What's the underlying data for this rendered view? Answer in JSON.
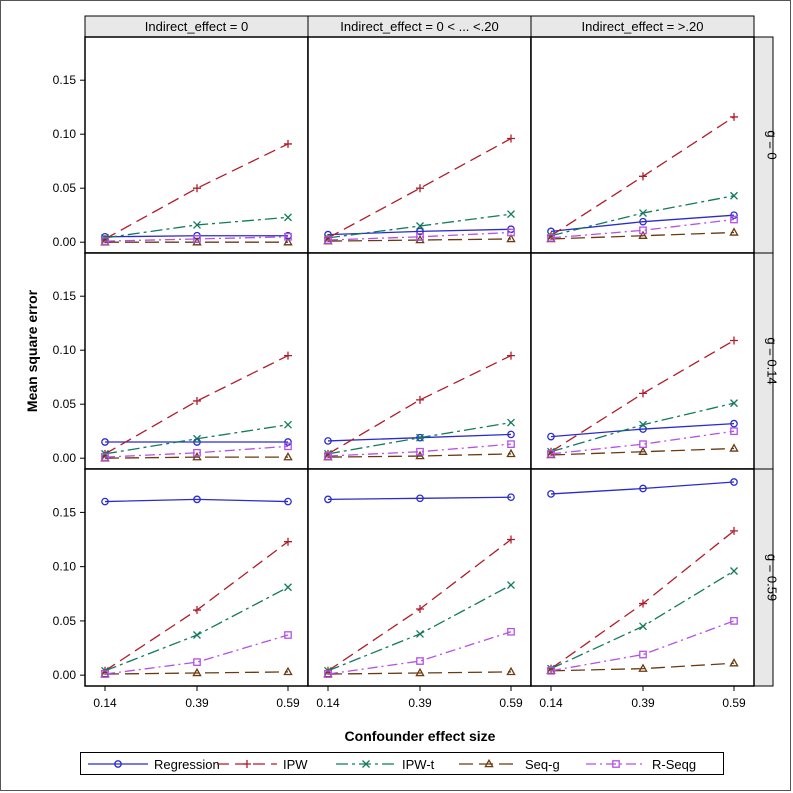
{
  "chart_data": {
    "type": "line",
    "xlabel": "Confounder effect size",
    "ylabel": "Mean square error",
    "x_categories": [
      "0.14",
      "0.39",
      "0.59"
    ],
    "ylim": [
      -0.01,
      0.19
    ],
    "yticks": [
      0.0,
      0.05,
      0.1,
      0.15
    ],
    "ytick_labels": [
      "0.00",
      "0.05",
      "0.10",
      "0.15"
    ],
    "columns": [
      "Indirect_effect = 0",
      "Indirect_effect = 0 < ... <.20",
      "Indirect_effect = >.20"
    ],
    "rows": [
      "g = 0",
      "g = 0.14",
      "g = 0.59"
    ],
    "series_styles": [
      {
        "name": "Regression",
        "color": "#2b2bd0",
        "dash": "",
        "marker": "circle"
      },
      {
        "name": "IPW",
        "color": "#b01c2a",
        "dash": "12,6",
        "marker": "plus"
      },
      {
        "name": "IPW-t",
        "color": "#137a5e",
        "dash": "12,4,3,4",
        "marker": "x"
      },
      {
        "name": "Seq-g",
        "color": "#6b3a10",
        "dash": "14,6",
        "marker": "triangle"
      },
      {
        "name": "R-Seqg",
        "color": "#b550e6",
        "dash": "10,4,2,4",
        "marker": "square"
      }
    ],
    "panels": [
      [
        {
          "series": [
            {
              "name": "Regression",
              "values": [
                0.005,
                0.006,
                0.006
              ]
            },
            {
              "name": "IPW",
              "values": [
                0.003,
                0.05,
                0.091
              ]
            },
            {
              "name": "IPW-t",
              "values": [
                0.004,
                0.016,
                0.023
              ]
            },
            {
              "name": "Seq-g",
              "values": [
                0.0,
                0.0,
                0.0
              ]
            },
            {
              "name": "R-Seqg",
              "values": [
                0.001,
                0.003,
                0.005
              ]
            }
          ]
        },
        {
          "series": [
            {
              "name": "Regression",
              "values": [
                0.007,
                0.01,
                0.012
              ]
            },
            {
              "name": "IPW",
              "values": [
                0.004,
                0.05,
                0.096
              ]
            },
            {
              "name": "IPW-t",
              "values": [
                0.004,
                0.015,
                0.026
              ]
            },
            {
              "name": "Seq-g",
              "values": [
                0.001,
                0.002,
                0.003
              ]
            },
            {
              "name": "R-Seqg",
              "values": [
                0.002,
                0.005,
                0.009
              ]
            }
          ]
        },
        {
          "series": [
            {
              "name": "Regression",
              "values": [
                0.01,
                0.019,
                0.025
              ]
            },
            {
              "name": "IPW",
              "values": [
                0.006,
                0.061,
                0.116
              ]
            },
            {
              "name": "IPW-t",
              "values": [
                0.006,
                0.027,
                0.043
              ]
            },
            {
              "name": "Seq-g",
              "values": [
                0.003,
                0.006,
                0.009
              ]
            },
            {
              "name": "R-Seqg",
              "values": [
                0.004,
                0.011,
                0.021
              ]
            }
          ]
        }
      ],
      [
        {
          "series": [
            {
              "name": "Regression",
              "values": [
                0.015,
                0.015,
                0.015
              ]
            },
            {
              "name": "IPW",
              "values": [
                0.004,
                0.053,
                0.095
              ]
            },
            {
              "name": "IPW-t",
              "values": [
                0.004,
                0.018,
                0.031
              ]
            },
            {
              "name": "Seq-g",
              "values": [
                0.0,
                0.001,
                0.001
              ]
            },
            {
              "name": "R-Seqg",
              "values": [
                0.001,
                0.005,
                0.011
              ]
            }
          ]
        },
        {
          "series": [
            {
              "name": "Regression",
              "values": [
                0.016,
                0.019,
                0.022
              ]
            },
            {
              "name": "IPW",
              "values": [
                0.004,
                0.054,
                0.095
              ]
            },
            {
              "name": "IPW-t",
              "values": [
                0.004,
                0.019,
                0.033
              ]
            },
            {
              "name": "Seq-g",
              "values": [
                0.001,
                0.002,
                0.004
              ]
            },
            {
              "name": "R-Seqg",
              "values": [
                0.002,
                0.006,
                0.013
              ]
            }
          ]
        },
        {
          "series": [
            {
              "name": "Regression",
              "values": [
                0.02,
                0.027,
                0.032
              ]
            },
            {
              "name": "IPW",
              "values": [
                0.006,
                0.06,
                0.109
              ]
            },
            {
              "name": "IPW-t",
              "values": [
                0.006,
                0.031,
                0.051
              ]
            },
            {
              "name": "Seq-g",
              "values": [
                0.003,
                0.006,
                0.009
              ]
            },
            {
              "name": "R-Seqg",
              "values": [
                0.004,
                0.013,
                0.025
              ]
            }
          ]
        }
      ],
      [
        {
          "series": [
            {
              "name": "Regression",
              "values": [
                0.16,
                0.162,
                0.16
              ]
            },
            {
              "name": "IPW",
              "values": [
                0.004,
                0.06,
                0.123
              ]
            },
            {
              "name": "IPW-t",
              "values": [
                0.004,
                0.037,
                0.081
              ]
            },
            {
              "name": "Seq-g",
              "values": [
                0.001,
                0.002,
                0.003
              ]
            },
            {
              "name": "R-Seqg",
              "values": [
                0.001,
                0.012,
                0.037
              ]
            }
          ]
        },
        {
          "series": [
            {
              "name": "Regression",
              "values": [
                0.162,
                0.163,
                0.164
              ]
            },
            {
              "name": "IPW",
              "values": [
                0.004,
                0.061,
                0.125
              ]
            },
            {
              "name": "IPW-t",
              "values": [
                0.004,
                0.038,
                0.083
              ]
            },
            {
              "name": "Seq-g",
              "values": [
                0.001,
                0.002,
                0.003
              ]
            },
            {
              "name": "R-Seqg",
              "values": [
                0.001,
                0.013,
                0.04
              ]
            }
          ]
        },
        {
          "series": [
            {
              "name": "Regression",
              "values": [
                0.167,
                0.172,
                0.178
              ]
            },
            {
              "name": "IPW",
              "values": [
                0.006,
                0.066,
                0.133
              ]
            },
            {
              "name": "IPW-t",
              "values": [
                0.006,
                0.045,
                0.096
              ]
            },
            {
              "name": "Seq-g",
              "values": [
                0.004,
                0.006,
                0.011
              ]
            },
            {
              "name": "R-Seqg",
              "values": [
                0.004,
                0.019,
                0.05
              ]
            }
          ]
        }
      ]
    ],
    "legend": [
      "Regression",
      "IPW",
      "IPW-t",
      "Seq-g",
      "R-Seqg"
    ]
  }
}
